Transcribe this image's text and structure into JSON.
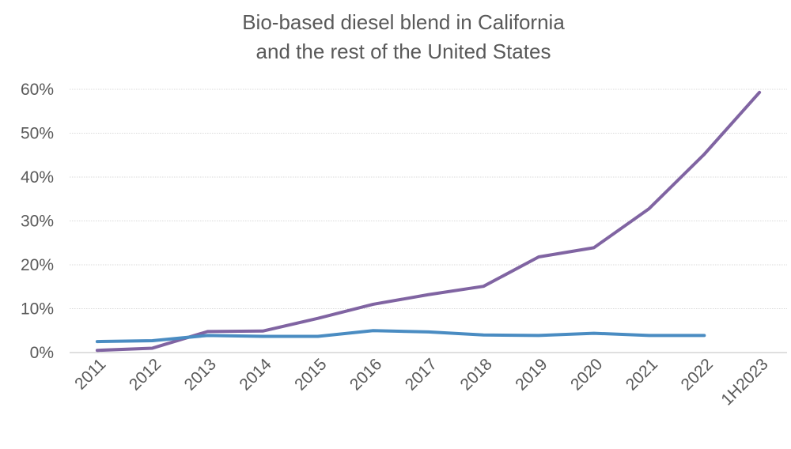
{
  "chart_data": {
    "type": "line",
    "title_lines": [
      "Bio-based diesel blend in California",
      "and the rest of the United States"
    ],
    "categories": [
      "2011",
      "2012",
      "2013",
      "2014",
      "2015",
      "2016",
      "2017",
      "2018",
      "2019",
      "2020",
      "2021",
      "2022",
      "1H2023"
    ],
    "series": [
      {
        "color": "#8064A2",
        "values": [
          0.5,
          1.0,
          4.8,
          4.9,
          7.8,
          11.0,
          13.2,
          15.1,
          21.8,
          23.9,
          32.8,
          45.2,
          59.3
        ]
      },
      {
        "color": "#4A8CC2",
        "values": [
          2.5,
          2.7,
          3.9,
          3.7,
          3.7,
          5.0,
          4.7,
          4.0,
          3.9,
          4.4,
          3.9,
          3.9,
          null
        ]
      }
    ],
    "yticks": [
      0,
      10,
      20,
      30,
      40,
      50,
      60
    ],
    "ytick_labels": [
      "0%",
      "10%",
      "20%",
      "30%",
      "40%",
      "50%",
      "60%"
    ],
    "ylim": [
      0,
      60
    ],
    "grid": true,
    "legend": "none"
  }
}
